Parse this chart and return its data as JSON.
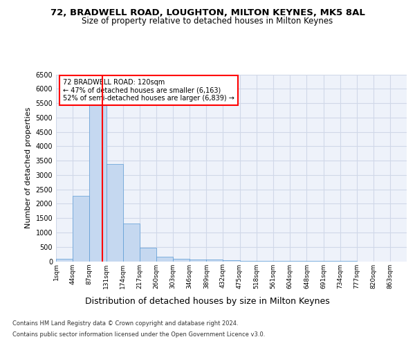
{
  "title1": "72, BRADWELL ROAD, LOUGHTON, MILTON KEYNES, MK5 8AL",
  "title2": "Size of property relative to detached houses in Milton Keynes",
  "xlabel": "Distribution of detached houses by size in Milton Keynes",
  "ylabel": "Number of detached properties",
  "footnote1": "Contains HM Land Registry data © Crown copyright and database right 2024.",
  "footnote2": "Contains public sector information licensed under the Open Government Licence v3.0.",
  "annotation_line1": "72 BRADWELL ROAD: 120sqm",
  "annotation_line2": "← 47% of detached houses are smaller (6,163)",
  "annotation_line3": "52% of semi-detached houses are larger (6,839) →",
  "bar_edges": [
    1,
    44,
    87,
    131,
    174,
    217,
    260,
    303,
    346,
    389,
    432,
    475,
    518,
    561,
    604,
    648,
    691,
    734,
    777,
    820,
    863
  ],
  "bar_heights": [
    75,
    2270,
    5430,
    3380,
    1310,
    480,
    155,
    75,
    55,
    50,
    30,
    15,
    10,
    5,
    3,
    2,
    1,
    1,
    0,
    0
  ],
  "bar_color": "#c5d8f0",
  "bar_edgecolor": "#5b9bd5",
  "vline_x": 120,
  "vline_color": "red",
  "ylim": [
    0,
    6500
  ],
  "yticks": [
    0,
    500,
    1000,
    1500,
    2000,
    2500,
    3000,
    3500,
    4000,
    4500,
    5000,
    5500,
    6000,
    6500
  ],
  "grid_color": "#d0d8e8",
  "background_color": "#eef2fa",
  "fig_background": "#ffffff",
  "annotation_box_color": "white",
  "annotation_box_edgecolor": "red"
}
